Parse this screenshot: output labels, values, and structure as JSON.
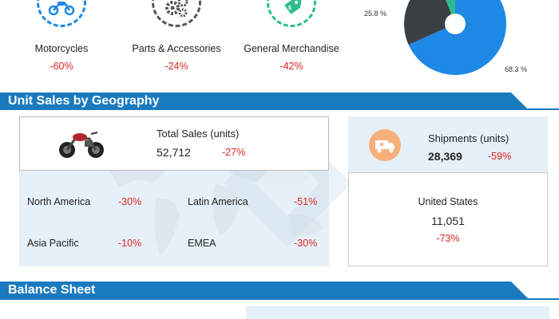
{
  "categories": [
    {
      "name": "Motorcycles",
      "change": "-60%",
      "icon": "motorcycle-icon",
      "color": "#1e88e5"
    },
    {
      "name": "Parts & Accessories",
      "change": "-24%",
      "icon": "gears-icon",
      "color": "#555555"
    },
    {
      "name": "General Merchandise",
      "change": "-42%",
      "icon": "price-tag-icon",
      "color": "#2ebd8a"
    }
  ],
  "pie": {
    "slices": [
      {
        "label": "68.3 %",
        "value": 68.3,
        "color": "#1e88e5"
      },
      {
        "label": "25.8 %",
        "value": 25.8,
        "color": "#3a3f44"
      },
      {
        "label": "",
        "value": 5.9,
        "color": "#2ebd8a"
      }
    ]
  },
  "sections": {
    "geography_title": "Unit Sales by Geography",
    "balance_title": "Balance Sheet"
  },
  "total_sales": {
    "label": "Total Sales (units)",
    "value": "52,712",
    "change": "-27%"
  },
  "regions": [
    {
      "name": "North America",
      "change": "-30%"
    },
    {
      "name": "Latin America",
      "change": "-51%"
    },
    {
      "name": "Asia Pacific",
      "change": "-10%"
    },
    {
      "name": "EMEA",
      "change": "-30%"
    }
  ],
  "shipments": {
    "label": "Shipments (units)",
    "value": "28,369",
    "change": "-59%"
  },
  "us": {
    "label": "United States",
    "value": "11,051",
    "change": "-73%"
  },
  "colors": {
    "accent": "#1a7ac0",
    "negative": "#e02424",
    "panel": "#e6f0f8"
  }
}
